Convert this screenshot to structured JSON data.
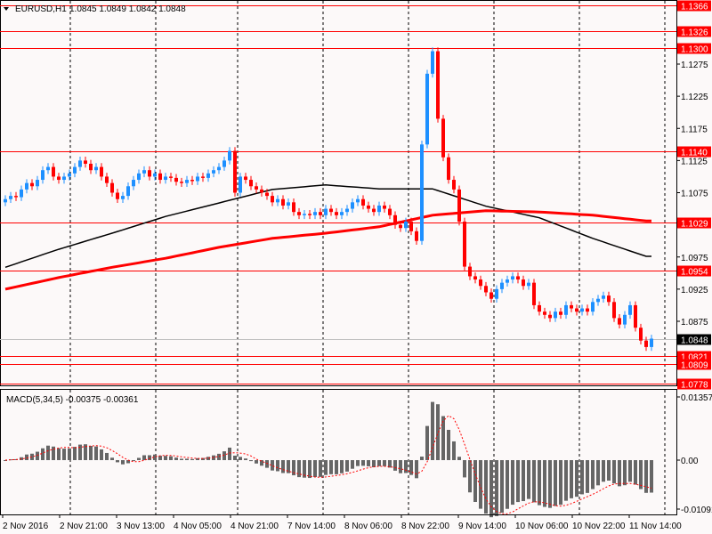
{
  "header": {
    "symbol": "EURUSD,H1",
    "ohlc": "1.0845 1.0849 1.0842 1.0848"
  },
  "macd_label": "MACD(5,34,5) -0.00375 -0.00361",
  "colors": {
    "bg": "#fcf9f9",
    "bull": "#1e90ff",
    "bear": "#ff0000",
    "level": "#ff0000",
    "ma_fast": "#000000",
    "ma_slow": "#ff0000",
    "macd_hist": "#666666",
    "macd_signal": "#ff0000"
  },
  "chart_data": {
    "type": "candlestick",
    "title": "EURUSD,H1",
    "ylim": [
      1.077,
      1.1366
    ],
    "price_ticks": [
      "1.1275",
      "1.1225",
      "1.1175",
      "1.1125",
      "1.1075",
      "1.0975",
      "1.0925",
      "1.0875"
    ],
    "levels": [
      "1.1366",
      "1.1326",
      "1.1300",
      "1.1140",
      "1.1029",
      "1.0954",
      "1.0821",
      "1.0809",
      "1.0778"
    ],
    "current_price": "1.0848",
    "time_labels": [
      "2 Nov 2016",
      "2 Nov 21:00",
      "3 Nov 13:00",
      "4 Nov 05:00",
      "4 Nov 21:00",
      "7 Nov 14:00",
      "8 Nov 06:00",
      "8 Nov 22:00",
      "9 Nov 14:00",
      "10 Nov 06:00",
      "10 Nov 22:00",
      "11 Nov 14:00"
    ],
    "closes": [
      1.1065,
      1.107,
      1.1068,
      1.108,
      1.109,
      1.1085,
      1.1095,
      1.111,
      1.1115,
      1.11,
      1.1095,
      1.11,
      1.1105,
      1.1115,
      1.1125,
      1.112,
      1.111,
      1.1115,
      1.11,
      1.109,
      1.1075,
      1.1065,
      1.107,
      1.1085,
      1.1095,
      1.1105,
      1.111,
      1.11,
      1.1105,
      1.1095,
      1.11,
      1.1098,
      1.1092,
      1.109,
      1.1095,
      1.1093,
      1.11,
      1.1098,
      1.1105,
      1.111,
      1.1115,
      1.1125,
      1.114,
      1.1075,
      1.11,
      1.1095,
      1.1085,
      1.108,
      1.1075,
      1.107,
      1.106,
      1.1065,
      1.1055,
      1.106,
      1.1045,
      1.104,
      1.1042,
      1.104,
      1.1045,
      1.104,
      1.105,
      1.1045,
      1.104,
      1.1045,
      1.105,
      1.106,
      1.1065,
      1.1055,
      1.105,
      1.1045,
      1.1055,
      1.105,
      1.104,
      1.1025,
      1.102,
      1.103,
      1.1015,
      1.1,
      1.115,
      1.126,
      1.1295,
      1.119,
      1.113,
      1.1095,
      1.108,
      1.103,
      1.096,
      1.0945,
      1.094,
      1.093,
      1.092,
      1.091,
      1.0925,
      1.0935,
      1.094,
      1.0945,
      1.094,
      1.093,
      1.0935,
      1.09,
      1.089,
      1.0885,
      1.088,
      1.089,
      1.0885,
      1.09,
      1.0895,
      1.089,
      1.0895,
      1.089,
      1.0905,
      1.091,
      1.0915,
      1.0905,
      1.088,
      1.087,
      1.0885,
      1.09,
      1.0865,
      1.0845,
      1.0835,
      1.0848
    ],
    "ma_fast_every10": [
      1.0959,
      1.0987,
      1.1012,
      1.1038,
      1.1059,
      1.108,
      1.1087,
      1.1081,
      1.1081,
      1.1054,
      1.1036,
      1.1004,
      1.0976
    ],
    "ma_slow_every10": [
      1.0925,
      1.0943,
      1.0959,
      1.0973,
      1.099,
      1.1004,
      1.1012,
      1.1022,
      1.104,
      1.1047,
      1.1045,
      1.104,
      1.1031
    ],
    "macd": {
      "params": [
        5,
        34,
        5
      ],
      "main": -0.00375,
      "signal": -0.00361,
      "ylim": [
        -0.01091,
        0.01357
      ],
      "ticks": [
        "0.01357",
        "0.00",
        "-0.01091"
      ]
    }
  }
}
